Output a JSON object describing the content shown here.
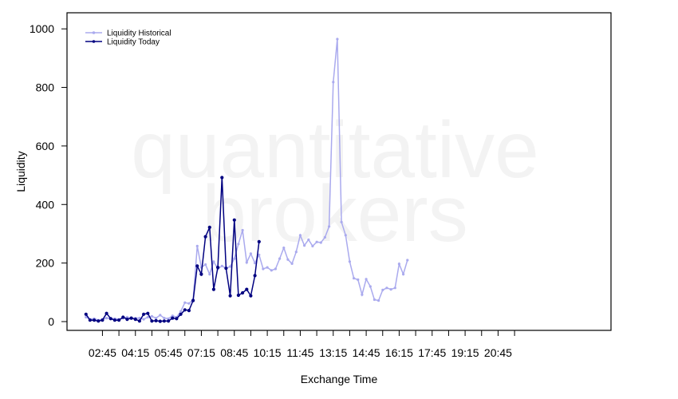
{
  "watermark": [
    "quantitative",
    "brokers"
  ],
  "chart_data": {
    "type": "line",
    "title": "",
    "xlabel": "Exchange Time",
    "ylabel": "Liquidity",
    "ylim": [
      -30,
      1055
    ],
    "yticks": [
      0,
      200,
      400,
      600,
      800,
      1000
    ],
    "x_range_slots": [
      -2.3,
      63.7
    ],
    "x_ticks": [
      {
        "slot": 2,
        "label": "02:45"
      },
      {
        "slot": 4,
        "label": ""
      },
      {
        "slot": 6,
        "label": "04:15"
      },
      {
        "slot": 8,
        "label": ""
      },
      {
        "slot": 10,
        "label": "05:45"
      },
      {
        "slot": 12,
        "label": ""
      },
      {
        "slot": 14,
        "label": "07:15"
      },
      {
        "slot": 16,
        "label": ""
      },
      {
        "slot": 18,
        "label": "08:45"
      },
      {
        "slot": 20,
        "label": ""
      },
      {
        "slot": 22,
        "label": "10:15"
      },
      {
        "slot": 24,
        "label": ""
      },
      {
        "slot": 26,
        "label": "11:45"
      },
      {
        "slot": 28,
        "label": ""
      },
      {
        "slot": 30,
        "label": "13:15"
      },
      {
        "slot": 32,
        "label": ""
      },
      {
        "slot": 34,
        "label": "14:45"
      },
      {
        "slot": 36,
        "label": ""
      },
      {
        "slot": 38,
        "label": "16:15"
      },
      {
        "slot": 40,
        "label": ""
      },
      {
        "slot": 42,
        "label": "17:45"
      },
      {
        "slot": 44,
        "label": ""
      },
      {
        "slot": 46,
        "label": "19:15"
      },
      {
        "slot": 48,
        "label": ""
      },
      {
        "slot": 50,
        "label": "20:45"
      },
      {
        "slot": 52,
        "label": ""
      }
    ],
    "grid": false,
    "legend": "top-left",
    "series": [
      {
        "name": "Liquidity Historical",
        "color": "#aaaaee",
        "start_slot": 0,
        "values": [
          15,
          8,
          10,
          5,
          8,
          12,
          10,
          10,
          8,
          12,
          15,
          10,
          12,
          12,
          8,
          15,
          18,
          12,
          22,
          12,
          10,
          20,
          15,
          35,
          65,
          62,
          75,
          258,
          185,
          195,
          162,
          205,
          180,
          190,
          182,
          188,
          215,
          265,
          312,
          202,
          232,
          200,
          228,
          180,
          185,
          175,
          180,
          215,
          252,
          212,
          198,
          238,
          295,
          260,
          280,
          258,
          272,
          270,
          288,
          325,
          818,
          965,
          340,
          295,
          205,
          148,
          143,
          92,
          145,
          120,
          75,
          72,
          108,
          115,
          110,
          115,
          197,
          162,
          210
        ]
      },
      {
        "name": "Liquidity Today",
        "color": "#000080",
        "start_slot": 0,
        "values": [
          25,
          5,
          5,
          2,
          5,
          28,
          10,
          5,
          5,
          15,
          8,
          12,
          8,
          2,
          25,
          28,
          2,
          3,
          1,
          2,
          2,
          12,
          10,
          25,
          40,
          38,
          72,
          190,
          162,
          290,
          322,
          110,
          185,
          492,
          182,
          88,
          347,
          90,
          98,
          110,
          88,
          157,
          273
        ]
      }
    ]
  }
}
